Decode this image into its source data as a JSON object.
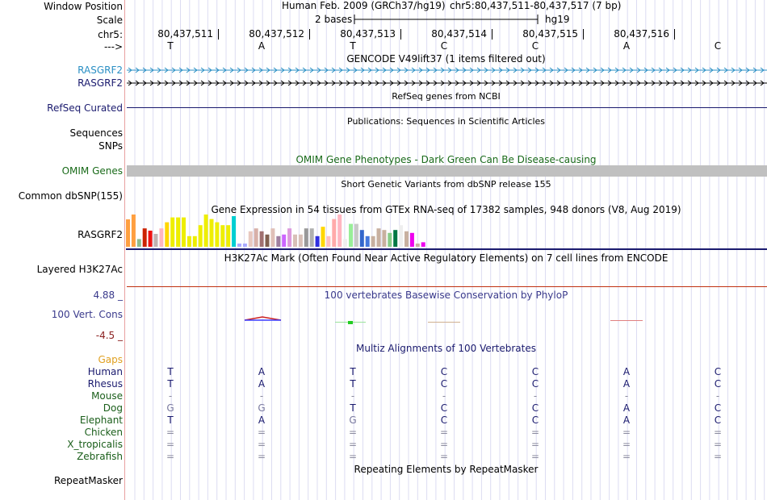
{
  "header": {
    "window_position_label": "Window Position",
    "scale_label": "Scale",
    "chrom_label": "chr5:",
    "strand_label": "--->",
    "assembly_text": "Human Feb. 2009 (GRCh37/hg19)",
    "position_text": "chr5:80,437,511-80,437,517 (7 bp)",
    "scale_text": "2 bases",
    "db_text": "hg19"
  },
  "ruler": {
    "positions": [
      "80,437,511",
      "80,437,512",
      "80,437,513",
      "80,437,514",
      "80,437,515",
      "80,437,516"
    ],
    "bases": [
      "T",
      "A",
      "T",
      "C",
      "C",
      "A",
      "C"
    ]
  },
  "tracks": {
    "gencode": {
      "title": "GENCODE V49lift37 (1 items filtered out)",
      "label": "RASGRF2",
      "color": "#2a8fc4"
    },
    "gencode2": {
      "label": "RASGRF2"
    },
    "refseq": {
      "title": "RefSeq genes from NCBI",
      "label": "RefSeq Curated"
    },
    "publications": {
      "title": "Publications: Sequences in Scientific Articles",
      "label": "Sequences"
    },
    "snps_label": "SNPs",
    "omim": {
      "title": "OMIM Gene Phenotypes - Dark Green Can Be Disease-causing",
      "label": "OMIM Genes",
      "color": "#1a6b1a"
    },
    "dbsnp": {
      "title": "Short Genetic Variants from dbSNP release 155",
      "label": "Common dbSNP(155)"
    },
    "gtex": {
      "title": "Gene Expression in 54 tissues from GTEx RNA-seq of 17382 samples, 948 donors (V8, Aug 2019)",
      "label": "RASGRF2"
    },
    "h3k27ac": {
      "title": "H3K27Ac Mark (Often Found Near Active Regulatory Elements) on 7 cell lines from ENCODE",
      "label": "Layered H3K27Ac"
    },
    "phylop": {
      "title": "100 vertebrates Basewise Conservation by PhyloP",
      "label": "100 Vert. Cons",
      "max": "4.88 _",
      "min": "-4.5 _"
    },
    "multiz": {
      "title": "Multiz Alignments of 100 Vertebrates",
      "gaps_label": "Gaps"
    },
    "repeatmasker": {
      "title": "Repeating Elements by RepeatMasker",
      "label": "RepeatMasker"
    }
  },
  "gtex_values": [
    0.85,
    1.0,
    0.24,
    0.57,
    0.5,
    0.4,
    0.57,
    0.76,
    0.91,
    0.91,
    0.91,
    0.33,
    0.33,
    0.67,
    1.0,
    0.86,
    0.76,
    0.67,
    0.67,
    0.95,
    0.1,
    0.1,
    0.48,
    0.57,
    0.48,
    0.38,
    0.57,
    0.33,
    0.38,
    0.57,
    0.38,
    0.38,
    0.57,
    0.57,
    0.33,
    0.62,
    0.33,
    0.86,
    1.0,
    0.24,
    0.71,
    0.71,
    0.52,
    0.33,
    0.33,
    0.57,
    0.52,
    0.43,
    0.52,
    0.67,
    0.48,
    0.43,
    0.1,
    0.14
  ],
  "gtex_colors": [
    "#ff9f40",
    "#ff9f40",
    "#8fbc8f",
    "#cc2200",
    "#ee1111",
    "#c0b0b0",
    "#ffb6c1",
    "#ffd700",
    "#eeee00",
    "#eeee00",
    "#eeee00",
    "#eeee00",
    "#eeee00",
    "#eeee00",
    "#eeee00",
    "#eeee00",
    "#eeee00",
    "#eeee00",
    "#eeee00",
    "#00ced1",
    "#aaaaff",
    "#aaaaff",
    "#e8c8c0",
    "#d8b0a8",
    "#a07070",
    "#806050",
    "#e0c0b8",
    "#a080a0",
    "#cc66ff",
    "#dd99dd",
    "#d8c0b8",
    "#d8c0b8",
    "#999999",
    "#b0b0b0",
    "#3030e0",
    "#ffd700",
    "#ffc0c0",
    "#ffaaaa",
    "#ffb6c1",
    "#eeeeee",
    "#99ee99",
    "#c8c8c8",
    "#3366cc",
    "#4477dd",
    "#c8b0a0",
    "#c8b0a0",
    "#c8b0a0",
    "#88cc88",
    "#007744",
    "#eeeeee",
    "#c8b0a0",
    "#ee00ee",
    "#c8b0a0",
    "#ee00ee"
  ],
  "species": [
    {
      "name": "Human",
      "color": "#1a1a6e",
      "bases": [
        "T",
        "A",
        "T",
        "C",
        "C",
        "A",
        "C"
      ]
    },
    {
      "name": "Rhesus",
      "color": "#1a1a6e",
      "bases": [
        "T",
        "A",
        "T",
        "C",
        "C",
        "A",
        "C"
      ]
    },
    {
      "name": "Mouse",
      "color": "#1a5e1a",
      "bases": [
        "-",
        "-",
        "-",
        "-",
        "-",
        "-",
        "-"
      ]
    },
    {
      "name": "Dog",
      "color": "#1a5e1a",
      "bases": [
        "G",
        "G",
        "T",
        "C",
        "C",
        "A",
        "C"
      ]
    },
    {
      "name": "Elephant",
      "color": "#1a5e1a",
      "bases": [
        "T",
        "A",
        "G",
        "C",
        "C",
        "A",
        "C"
      ]
    },
    {
      "name": "Chicken",
      "color": "#1a5e1a",
      "bases": [
        "=",
        "=",
        "=",
        "=",
        "=",
        "=",
        "="
      ]
    },
    {
      "name": "X_tropicalis",
      "color": "#1a5e1a",
      "bases": [
        "=",
        "=",
        "=",
        "=",
        "=",
        "=",
        "="
      ]
    },
    {
      "name": "Zebrafish",
      "color": "#1a5e1a",
      "bases": [
        "=",
        "=",
        "=",
        "=",
        "=",
        "=",
        "="
      ]
    }
  ],
  "colors": {
    "label_blue": "#1a1a6e",
    "phylop_blue": "#3a3a8c",
    "phylop_red": "#8b2020",
    "gaps_orange": "#e0a020",
    "omim_bar": "#c0c0c0",
    "h3k27ac_line": "#c03010"
  }
}
